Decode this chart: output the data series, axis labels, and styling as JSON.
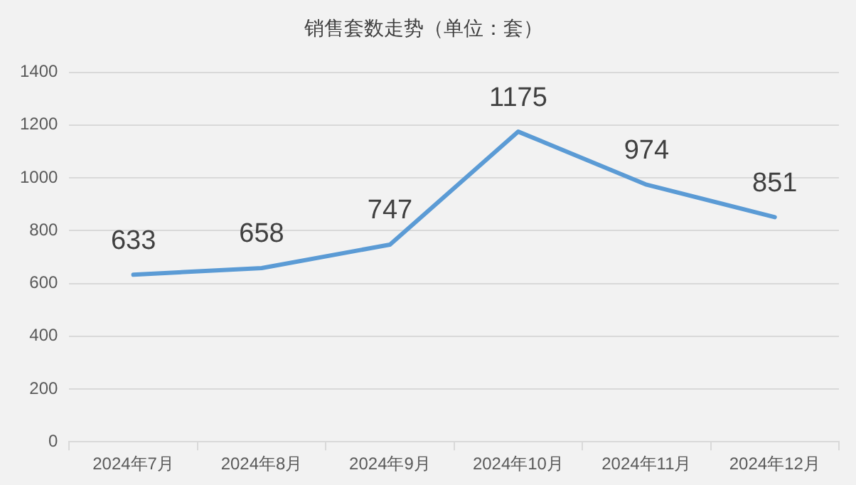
{
  "chart_data": {
    "type": "line",
    "title": "销售套数走势（单位：套）",
    "categories": [
      "2024年7月",
      "2024年8月",
      "2024年9月",
      "2024年10月",
      "2024年11月",
      "2024年12月"
    ],
    "series": [
      {
        "color": "#5b9bd5",
        "values": [
          633,
          658,
          747,
          1175,
          974,
          851
        ]
      }
    ],
    "ylim": [
      0,
      1400
    ],
    "yticks": [
      0,
      200,
      400,
      600,
      800,
      1000,
      1200,
      1400
    ],
    "grid": "y",
    "legend": false,
    "marker": "none",
    "line_style": "solid",
    "data_labels": true
  }
}
